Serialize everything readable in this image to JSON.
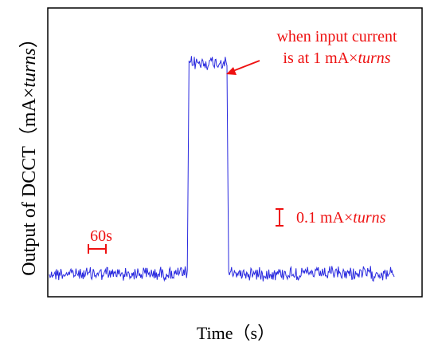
{
  "chart_data": {
    "type": "line",
    "title": "",
    "xlabel": "Time（s）",
    "ylabel": "Output of DCCT（mA×turns）",
    "ylabel_parts": {
      "prefix": "Output of DCCT（mA×",
      "italic": "turns",
      "suffix": "）"
    },
    "xlim": [
      0,
      10
    ],
    "ylim": [
      0,
      1.33
    ],
    "grid": false,
    "legend": "none",
    "series": [
      {
        "color": "#2a2adf",
        "x": [
          0.0,
          4.0,
          4.05,
          4.1,
          5.1,
          5.15,
          5.2,
          10.0
        ],
        "y": [
          0.0,
          0.0,
          0.98,
          1.0,
          1.0,
          0.98,
          0.0,
          0.0
        ]
      }
    ],
    "annotations": {
      "arrow_note_line1": "when input current",
      "arrow_note_line2_prefix": "is at 1 mA×",
      "arrow_note_line2_italic": "turns",
      "time_scale_label": "60s",
      "amp_scale_value": "0.1  mA×",
      "amp_scale_italic": "turns",
      "color": "#ee1111"
    }
  }
}
